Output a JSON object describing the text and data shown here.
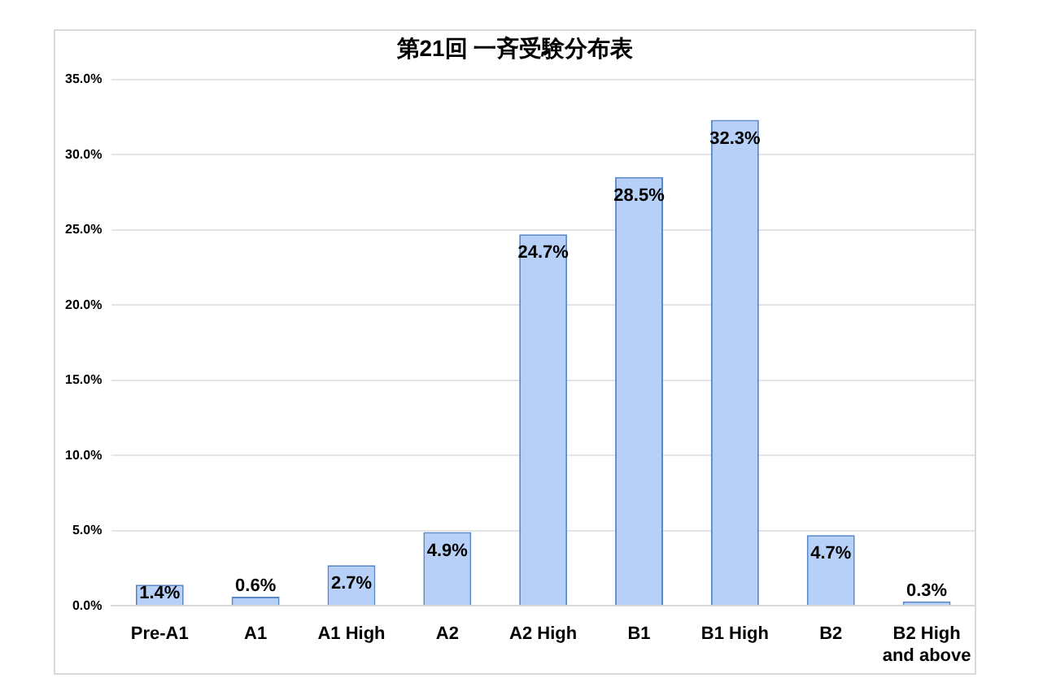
{
  "chart_data": {
    "type": "bar",
    "title": "第21回 一斉受験分布表",
    "categories": [
      "Pre-A1",
      "A1",
      "A1 High",
      "A2",
      "A2 High",
      "B1",
      "B1 High",
      "B2",
      "B2 High and above"
    ],
    "values": [
      1.4,
      0.6,
      2.7,
      4.9,
      24.7,
      28.5,
      32.3,
      4.7,
      0.3
    ],
    "value_labels": [
      "1.4%",
      "0.6%",
      "2.7%",
      "4.9%",
      "24.7%",
      "28.5%",
      "32.3%",
      "4.7%",
      "0.3%"
    ],
    "color": "#b7d0f8",
    "ylim": [
      0,
      35
    ],
    "yticks": [
      {
        "value": 0,
        "label": "0.0%"
      },
      {
        "value": 5,
        "label": "5.0%"
      },
      {
        "value": 10,
        "label": "10.0%"
      },
      {
        "value": 15,
        "label": "15.0%"
      },
      {
        "value": 20,
        "label": "20.0%"
      },
      {
        "value": 25,
        "label": "25.0%"
      },
      {
        "value": 30,
        "label": "30.0%"
      },
      {
        "value": 35,
        "label": "35.0%"
      }
    ],
    "grid": "y",
    "legend": false
  }
}
